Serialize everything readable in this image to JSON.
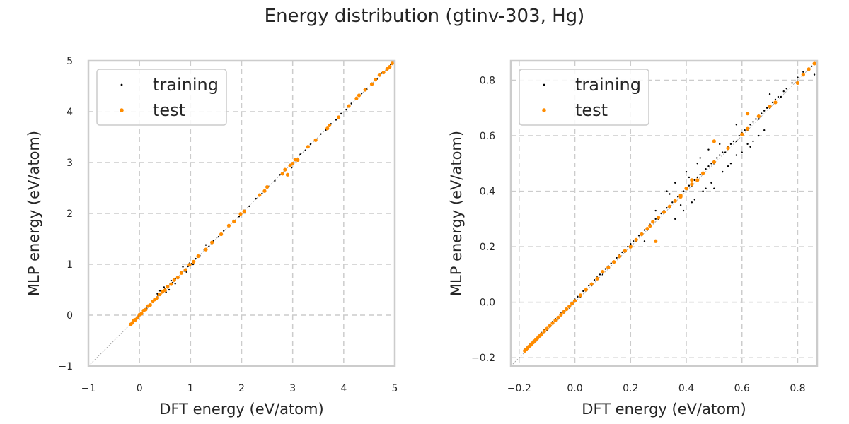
{
  "figure": {
    "title": "Energy distribution (gtinv-303, Hg)"
  },
  "colors": {
    "training": "#000000",
    "test": "#ff8c00",
    "grid": "#cccccc",
    "frame": "#cccccc",
    "diagonal": "#9a9a9a"
  },
  "chart_data": [
    {
      "type": "scatter",
      "xlabel": "DFT energy (eV/atom)",
      "ylabel": "MLP energy (eV/atom)",
      "xlim": [
        -1,
        5
      ],
      "ylim": [
        -1,
        5
      ],
      "xticks": [
        -1,
        0,
        1,
        2,
        3,
        4,
        5
      ],
      "yticks": [
        -1,
        0,
        1,
        2,
        3,
        4,
        5
      ],
      "xtick_labels": [
        "−1",
        "0",
        "1",
        "2",
        "3",
        "4",
        "5"
      ],
      "ytick_labels": [
        "−1",
        "0",
        "1",
        "2",
        "3",
        "4",
        "5"
      ],
      "grid": true,
      "legend": "top-left",
      "diagonal": true,
      "series": [
        {
          "name": "training",
          "marker_size": 1.2,
          "x": [
            -0.18,
            -0.15,
            -0.12,
            -0.09,
            -0.05,
            -0.02,
            0.02,
            0.05,
            0.1,
            0.14,
            0.18,
            0.22,
            0.27,
            0.31,
            0.36,
            0.41,
            0.45,
            0.5,
            0.55,
            0.6,
            0.65,
            0.7,
            0.76,
            0.82,
            0.88,
            0.95,
            1.02,
            1.1,
            1.18,
            1.27,
            1.36,
            1.45,
            1.55,
            1.65,
            1.75,
            1.85,
            1.95,
            2.05,
            2.15,
            2.28,
            2.4,
            2.52,
            2.65,
            2.75,
            2.85,
            2.95,
            3.05,
            3.15,
            3.25,
            3.35,
            3.45,
            3.55,
            3.65,
            3.75,
            3.85,
            3.95,
            4.05,
            4.15,
            4.25,
            4.35,
            4.45,
            4.55,
            4.65,
            4.75,
            4.85,
            4.92,
            0.48,
            0.52,
            0.58,
            0.62,
            0.7,
            0.85,
            0.92,
            0.98,
            1.05,
            1.3,
            2.98,
            0.4,
            0.35
          ],
          "y": [
            -0.18,
            -0.15,
            -0.12,
            -0.08,
            -0.06,
            -0.01,
            0.03,
            0.04,
            0.11,
            0.13,
            0.19,
            0.21,
            0.28,
            0.3,
            0.37,
            0.42,
            0.44,
            0.52,
            0.54,
            0.61,
            0.64,
            0.71,
            0.75,
            0.83,
            0.87,
            0.96,
            1.01,
            1.11,
            1.17,
            1.28,
            1.35,
            1.46,
            1.54,
            1.66,
            1.74,
            1.86,
            1.94,
            2.06,
            2.14,
            2.29,
            2.39,
            2.53,
            2.64,
            2.76,
            2.84,
            2.96,
            3.04,
            3.16,
            3.24,
            3.36,
            3.44,
            3.56,
            3.64,
            3.76,
            3.84,
            3.96,
            4.04,
            4.16,
            4.24,
            4.36,
            4.44,
            4.56,
            4.64,
            4.76,
            4.84,
            4.93,
            0.55,
            0.45,
            0.5,
            0.68,
            0.62,
            0.95,
            0.85,
            1.02,
            1.0,
            1.38,
            2.9,
            0.48,
            0.42
          ]
        },
        {
          "name": "test",
          "marker_size": 2.6,
          "x": [
            -0.17,
            -0.14,
            -0.11,
            -0.08,
            -0.04,
            0.0,
            0.04,
            0.08,
            0.12,
            0.17,
            0.21,
            0.26,
            0.3,
            0.35,
            0.4,
            0.45,
            0.5,
            0.55,
            0.62,
            0.68,
            0.75,
            0.82,
            0.9,
            0.98,
            1.06,
            1.15,
            1.3,
            1.42,
            1.6,
            1.75,
            1.85,
            1.98,
            2.05,
            2.35,
            2.45,
            2.5,
            2.8,
            2.85,
            2.9,
            2.95,
            3.0,
            3.05,
            3.1,
            3.3,
            3.45,
            3.68,
            3.72,
            3.9,
            4.1,
            4.25,
            4.3,
            4.42,
            4.55,
            4.62,
            4.7,
            4.78,
            4.85,
            4.9,
            4.95
          ],
          "y": [
            -0.18,
            -0.15,
            -0.1,
            -0.09,
            -0.05,
            0.01,
            0.03,
            0.09,
            0.11,
            0.18,
            0.2,
            0.27,
            0.31,
            0.34,
            0.41,
            0.46,
            0.49,
            0.56,
            0.61,
            0.69,
            0.74,
            0.83,
            0.89,
            0.99,
            1.05,
            1.16,
            1.29,
            1.43,
            1.59,
            1.76,
            1.84,
            1.99,
            2.04,
            2.36,
            2.44,
            2.52,
            2.78,
            2.86,
            2.76,
            2.94,
            2.98,
            3.06,
            3.05,
            3.31,
            3.44,
            3.67,
            3.73,
            3.89,
            4.11,
            4.26,
            4.32,
            4.43,
            4.54,
            4.63,
            4.72,
            4.77,
            4.84,
            4.88,
            4.95
          ]
        }
      ]
    },
    {
      "type": "scatter",
      "xlabel": "DFT energy (eV/atom)",
      "ylabel": "MLP energy (eV/atom)",
      "xlim": [
        -0.23,
        0.87
      ],
      "ylim": [
        -0.23,
        0.87
      ],
      "xticks": [
        -0.2,
        0.0,
        0.2,
        0.4,
        0.6,
        0.8
      ],
      "yticks": [
        -0.2,
        0.0,
        0.2,
        0.4,
        0.6,
        0.8
      ],
      "xtick_labels": [
        "−0.2",
        "0.0",
        "0.2",
        "0.4",
        "0.6",
        "0.8"
      ],
      "ytick_labels": [
        "−0.2",
        "0.0",
        "0.2",
        "0.4",
        "0.6",
        "0.8"
      ],
      "grid": true,
      "legend": "top-left",
      "diagonal": true,
      "series": [
        {
          "name": "training",
          "marker_size": 1.2,
          "x": [
            -0.18,
            -0.17,
            -0.16,
            -0.15,
            -0.14,
            -0.13,
            -0.12,
            -0.11,
            -0.1,
            -0.09,
            -0.08,
            -0.07,
            -0.06,
            -0.05,
            -0.04,
            -0.03,
            -0.02,
            -0.01,
            0.0,
            0.01,
            0.02,
            0.03,
            0.04,
            0.05,
            0.06,
            0.07,
            0.08,
            0.09,
            0.1,
            0.11,
            0.12,
            0.13,
            0.14,
            0.15,
            0.16,
            0.17,
            0.18,
            0.19,
            0.2,
            0.21,
            0.22,
            0.23,
            0.24,
            0.25,
            0.26,
            0.27,
            0.28,
            0.29,
            0.3,
            0.31,
            0.32,
            0.33,
            0.34,
            0.35,
            0.36,
            0.37,
            0.38,
            0.39,
            0.4,
            0.41,
            0.42,
            0.43,
            0.44,
            0.45,
            0.46,
            0.47,
            0.48,
            0.49,
            0.5,
            0.51,
            0.52,
            0.53,
            0.54,
            0.55,
            0.56,
            0.57,
            0.58,
            0.59,
            0.6,
            0.61,
            0.62,
            0.63,
            0.64,
            0.65,
            0.66,
            0.67,
            0.68,
            0.69,
            0.7,
            0.71,
            0.72,
            0.73,
            0.74,
            0.75,
            0.76,
            0.78,
            0.8,
            0.82,
            0.84,
            0.85,
            0.86,
            0.33,
            0.36,
            0.4,
            0.45,
            0.48,
            0.52,
            0.55,
            0.58,
            0.62,
            0.66,
            0.36,
            0.39,
            0.42,
            0.46,
            0.49,
            0.53,
            0.56,
            0.6,
            0.64,
            0.68,
            0.3,
            0.34,
            0.29,
            0.44,
            0.43,
            0.5,
            0.58,
            0.63,
            0.7,
            0.25,
            0.38,
            0.41,
            0.47,
            0.53
          ],
          "y": [
            -0.17,
            -0.16,
            -0.15,
            -0.14,
            -0.14,
            -0.12,
            -0.11,
            -0.1,
            -0.1,
            -0.08,
            -0.07,
            -0.06,
            -0.06,
            -0.04,
            -0.03,
            -0.02,
            -0.02,
            0.0,
            0.01,
            0.02,
            0.02,
            0.04,
            0.05,
            0.06,
            0.06,
            0.08,
            0.09,
            0.1,
            0.1,
            0.12,
            0.13,
            0.14,
            0.14,
            0.16,
            0.17,
            0.18,
            0.18,
            0.2,
            0.21,
            0.22,
            0.22,
            0.24,
            0.25,
            0.26,
            0.26,
            0.28,
            0.29,
            0.3,
            0.3,
            0.32,
            0.33,
            0.34,
            0.34,
            0.36,
            0.37,
            0.38,
            0.38,
            0.4,
            0.41,
            0.42,
            0.42,
            0.44,
            0.45,
            0.46,
            0.46,
            0.48,
            0.49,
            0.5,
            0.5,
            0.52,
            0.53,
            0.54,
            0.54,
            0.56,
            0.57,
            0.58,
            0.58,
            0.6,
            0.61,
            0.62,
            0.62,
            0.64,
            0.65,
            0.66,
            0.66,
            0.68,
            0.69,
            0.7,
            0.7,
            0.72,
            0.73,
            0.74,
            0.74,
            0.76,
            0.77,
            0.79,
            0.81,
            0.83,
            0.84,
            0.85,
            0.82,
            0.4,
            0.43,
            0.47,
            0.52,
            0.55,
            0.57,
            0.49,
            0.53,
            0.57,
            0.6,
            0.3,
            0.33,
            0.36,
            0.4,
            0.43,
            0.47,
            0.5,
            0.54,
            0.58,
            0.62,
            0.3,
            0.39,
            0.33,
            0.5,
            0.37,
            0.41,
            0.64,
            0.56,
            0.75,
            0.22,
            0.35,
            0.45,
            0.41,
            0.47
          ]
        },
        {
          "name": "test",
          "marker_size": 2.6,
          "x": [
            -0.18,
            -0.175,
            -0.17,
            -0.165,
            -0.16,
            -0.155,
            -0.15,
            -0.145,
            -0.14,
            -0.135,
            -0.13,
            -0.125,
            -0.12,
            -0.11,
            -0.1,
            -0.09,
            -0.08,
            -0.07,
            -0.06,
            -0.05,
            -0.04,
            -0.03,
            -0.02,
            -0.01,
            0.0,
            0.02,
            0.04,
            0.06,
            0.08,
            0.1,
            0.12,
            0.14,
            0.16,
            0.18,
            0.2,
            0.22,
            0.24,
            0.26,
            0.27,
            0.28,
            0.3,
            0.32,
            0.34,
            0.36,
            0.38,
            0.4,
            0.42,
            0.44,
            0.46,
            0.5,
            0.55,
            0.6,
            0.62,
            0.66,
            0.7,
            0.72,
            0.8,
            0.82,
            0.84,
            0.86,
            0.29,
            0.5,
            0.62,
            0.42,
            0.38
          ],
          "y": [
            -0.175,
            -0.17,
            -0.165,
            -0.16,
            -0.155,
            -0.15,
            -0.145,
            -0.14,
            -0.135,
            -0.13,
            -0.125,
            -0.12,
            -0.115,
            -0.105,
            -0.095,
            -0.085,
            -0.075,
            -0.065,
            -0.055,
            -0.045,
            -0.035,
            -0.025,
            -0.015,
            -0.005,
            0.005,
            0.025,
            0.045,
            0.065,
            0.085,
            0.11,
            0.125,
            0.145,
            0.165,
            0.185,
            0.2,
            0.225,
            0.245,
            0.265,
            0.275,
            0.29,
            0.305,
            0.325,
            0.345,
            0.365,
            0.385,
            0.41,
            0.425,
            0.44,
            0.465,
            0.505,
            0.555,
            0.605,
            0.625,
            0.67,
            0.705,
            0.72,
            0.79,
            0.82,
            0.84,
            0.86,
            0.22,
            0.58,
            0.68,
            0.44,
            0.38
          ]
        }
      ]
    }
  ]
}
